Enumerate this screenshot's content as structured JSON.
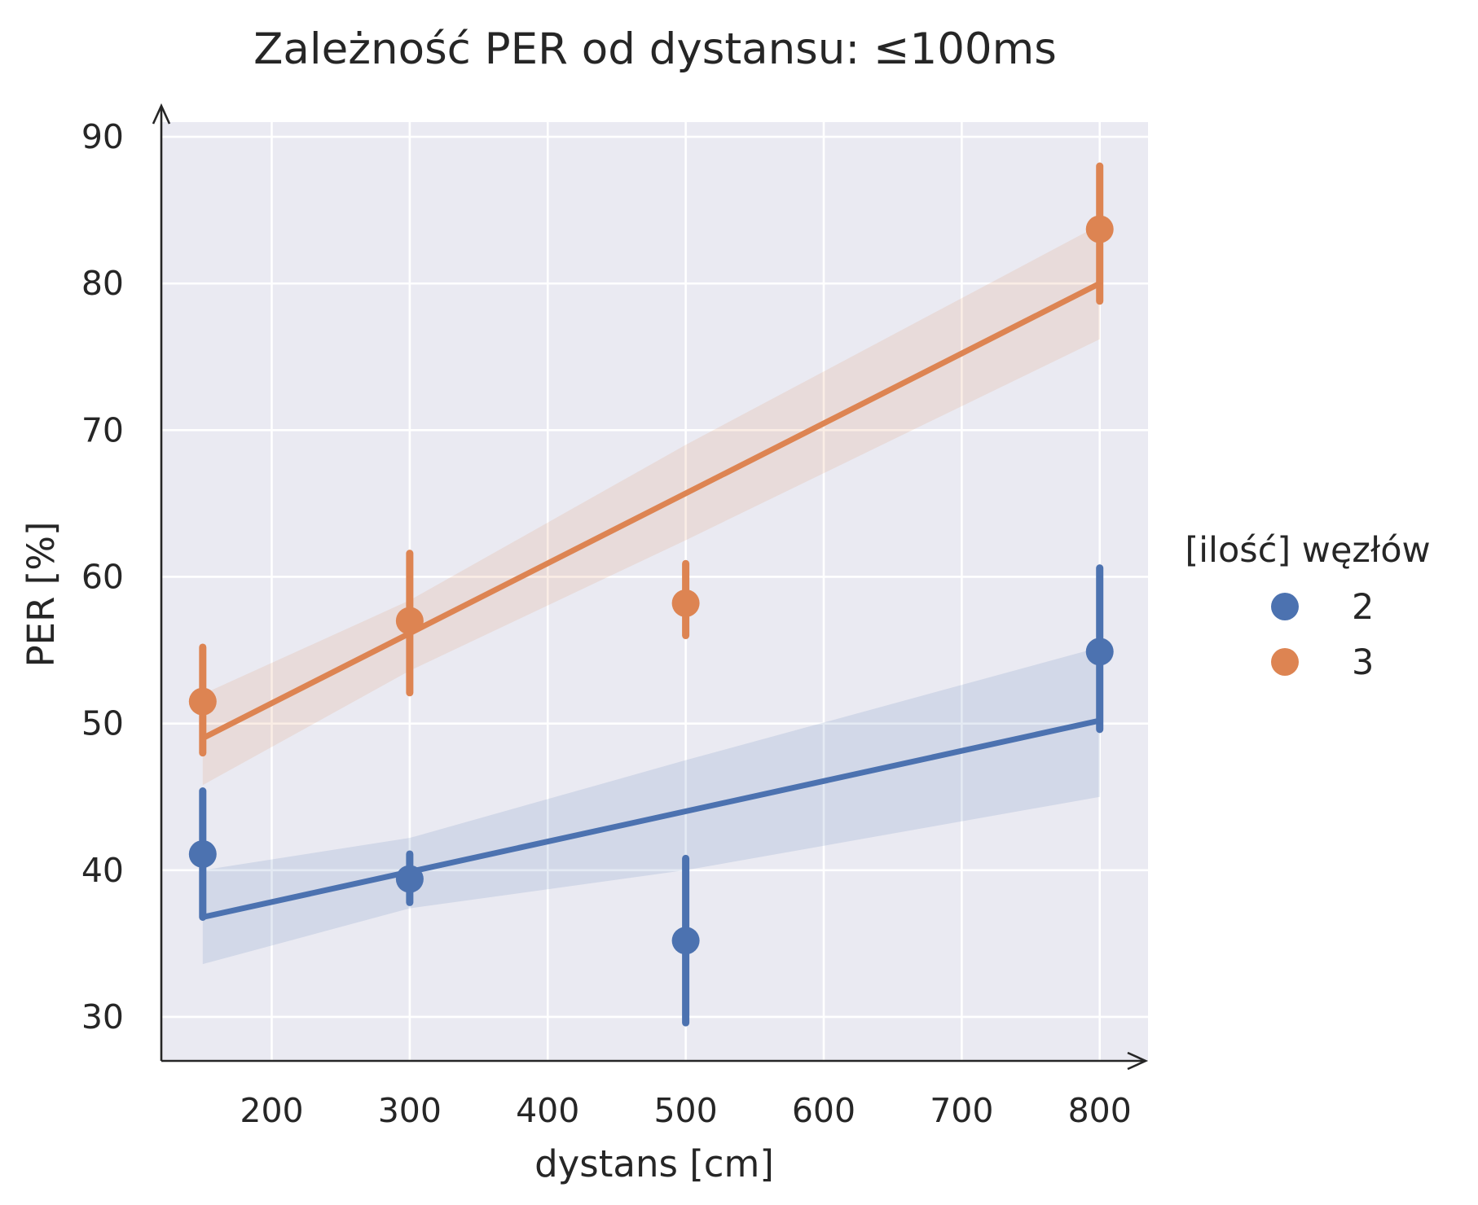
{
  "chart_data": {
    "type": "scatter",
    "title": "Zależność PER od dystansu: ≤100ms",
    "xlabel": "dystans [cm]",
    "ylabel": "PER [%]",
    "xlim": [
      120,
      835
    ],
    "ylim": [
      27,
      91
    ],
    "x_ticks": [
      200,
      300,
      400,
      500,
      600,
      700,
      800
    ],
    "y_ticks": [
      30,
      40,
      50,
      60,
      70,
      80,
      90
    ],
    "grid": true,
    "legend": {
      "title": "[ilość] węzłów",
      "placement": "right"
    },
    "series": [
      {
        "name": "2",
        "color": "#4c72b0",
        "points": [
          {
            "x": 150,
            "y": 41.1,
            "err_low": 36.8,
            "err_high": 45.4
          },
          {
            "x": 300,
            "y": 39.4,
            "err_low": 37.8,
            "err_high": 41.1
          },
          {
            "x": 500,
            "y": 35.2,
            "err_low": 29.6,
            "err_high": 40.8
          },
          {
            "x": 800,
            "y": 54.9,
            "err_low": 49.6,
            "err_high": 60.6
          }
        ],
        "regression": {
          "x": [
            150,
            800
          ],
          "y": [
            36.8,
            50.2
          ]
        },
        "ci_band": {
          "x": [
            150,
            300,
            500,
            800
          ],
          "low": [
            33.6,
            37.4,
            40.0,
            45.0
          ],
          "high": [
            40.0,
            42.2,
            47.5,
            55.2
          ]
        }
      },
      {
        "name": "3",
        "color": "#dd8452",
        "points": [
          {
            "x": 150,
            "y": 51.5,
            "err_low": 48.0,
            "err_high": 55.2
          },
          {
            "x": 300,
            "y": 57.0,
            "err_low": 52.1,
            "err_high": 61.6
          },
          {
            "x": 500,
            "y": 58.2,
            "err_low": 56.0,
            "err_high": 60.9
          },
          {
            "x": 800,
            "y": 83.7,
            "err_low": 78.8,
            "err_high": 88.0
          }
        ],
        "regression": {
          "x": [
            150,
            800
          ],
          "y": [
            49.0,
            80.0
          ]
        },
        "ci_band": {
          "x": [
            150,
            300,
            500,
            800
          ],
          "low": [
            45.8,
            53.6,
            62.5,
            76.2
          ],
          "high": [
            52.0,
            58.4,
            69.0,
            84.0
          ]
        }
      }
    ]
  }
}
